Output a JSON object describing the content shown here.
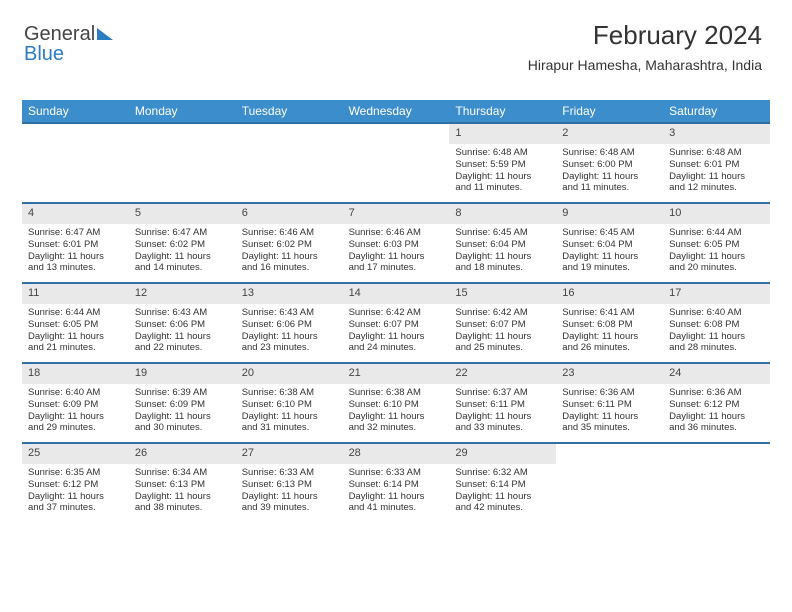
{
  "logo": {
    "text1": "General",
    "text2": "Blue"
  },
  "title": "February 2024",
  "subtitle": "Hirapur Hamesha, Maharashtra, India",
  "colors": {
    "headerBar": "#3c8dcc",
    "weekBorder": "#2f6fa3",
    "dayNumBg": "#e9e9e9",
    "logoBlue": "#2b7cc0",
    "text": "#333333",
    "bg": "#ffffff"
  },
  "dayNames": [
    "Sunday",
    "Monday",
    "Tuesday",
    "Wednesday",
    "Thursday",
    "Friday",
    "Saturday"
  ],
  "weeks": [
    [
      {
        "empty": true
      },
      {
        "empty": true
      },
      {
        "empty": true
      },
      {
        "empty": true
      },
      {
        "n": "1",
        "sr": "Sunrise: 6:48 AM",
        "ss": "Sunset: 5:59 PM",
        "d1": "Daylight: 11 hours",
        "d2": "and 11 minutes."
      },
      {
        "n": "2",
        "sr": "Sunrise: 6:48 AM",
        "ss": "Sunset: 6:00 PM",
        "d1": "Daylight: 11 hours",
        "d2": "and 11 minutes."
      },
      {
        "n": "3",
        "sr": "Sunrise: 6:48 AM",
        "ss": "Sunset: 6:01 PM",
        "d1": "Daylight: 11 hours",
        "d2": "and 12 minutes."
      }
    ],
    [
      {
        "n": "4",
        "sr": "Sunrise: 6:47 AM",
        "ss": "Sunset: 6:01 PM",
        "d1": "Daylight: 11 hours",
        "d2": "and 13 minutes."
      },
      {
        "n": "5",
        "sr": "Sunrise: 6:47 AM",
        "ss": "Sunset: 6:02 PM",
        "d1": "Daylight: 11 hours",
        "d2": "and 14 minutes."
      },
      {
        "n": "6",
        "sr": "Sunrise: 6:46 AM",
        "ss": "Sunset: 6:02 PM",
        "d1": "Daylight: 11 hours",
        "d2": "and 16 minutes."
      },
      {
        "n": "7",
        "sr": "Sunrise: 6:46 AM",
        "ss": "Sunset: 6:03 PM",
        "d1": "Daylight: 11 hours",
        "d2": "and 17 minutes."
      },
      {
        "n": "8",
        "sr": "Sunrise: 6:45 AM",
        "ss": "Sunset: 6:04 PM",
        "d1": "Daylight: 11 hours",
        "d2": "and 18 minutes."
      },
      {
        "n": "9",
        "sr": "Sunrise: 6:45 AM",
        "ss": "Sunset: 6:04 PM",
        "d1": "Daylight: 11 hours",
        "d2": "and 19 minutes."
      },
      {
        "n": "10",
        "sr": "Sunrise: 6:44 AM",
        "ss": "Sunset: 6:05 PM",
        "d1": "Daylight: 11 hours",
        "d2": "and 20 minutes."
      }
    ],
    [
      {
        "n": "11",
        "sr": "Sunrise: 6:44 AM",
        "ss": "Sunset: 6:05 PM",
        "d1": "Daylight: 11 hours",
        "d2": "and 21 minutes."
      },
      {
        "n": "12",
        "sr": "Sunrise: 6:43 AM",
        "ss": "Sunset: 6:06 PM",
        "d1": "Daylight: 11 hours",
        "d2": "and 22 minutes."
      },
      {
        "n": "13",
        "sr": "Sunrise: 6:43 AM",
        "ss": "Sunset: 6:06 PM",
        "d1": "Daylight: 11 hours",
        "d2": "and 23 minutes."
      },
      {
        "n": "14",
        "sr": "Sunrise: 6:42 AM",
        "ss": "Sunset: 6:07 PM",
        "d1": "Daylight: 11 hours",
        "d2": "and 24 minutes."
      },
      {
        "n": "15",
        "sr": "Sunrise: 6:42 AM",
        "ss": "Sunset: 6:07 PM",
        "d1": "Daylight: 11 hours",
        "d2": "and 25 minutes."
      },
      {
        "n": "16",
        "sr": "Sunrise: 6:41 AM",
        "ss": "Sunset: 6:08 PM",
        "d1": "Daylight: 11 hours",
        "d2": "and 26 minutes."
      },
      {
        "n": "17",
        "sr": "Sunrise: 6:40 AM",
        "ss": "Sunset: 6:08 PM",
        "d1": "Daylight: 11 hours",
        "d2": "and 28 minutes."
      }
    ],
    [
      {
        "n": "18",
        "sr": "Sunrise: 6:40 AM",
        "ss": "Sunset: 6:09 PM",
        "d1": "Daylight: 11 hours",
        "d2": "and 29 minutes."
      },
      {
        "n": "19",
        "sr": "Sunrise: 6:39 AM",
        "ss": "Sunset: 6:09 PM",
        "d1": "Daylight: 11 hours",
        "d2": "and 30 minutes."
      },
      {
        "n": "20",
        "sr": "Sunrise: 6:38 AM",
        "ss": "Sunset: 6:10 PM",
        "d1": "Daylight: 11 hours",
        "d2": "and 31 minutes."
      },
      {
        "n": "21",
        "sr": "Sunrise: 6:38 AM",
        "ss": "Sunset: 6:10 PM",
        "d1": "Daylight: 11 hours",
        "d2": "and 32 minutes."
      },
      {
        "n": "22",
        "sr": "Sunrise: 6:37 AM",
        "ss": "Sunset: 6:11 PM",
        "d1": "Daylight: 11 hours",
        "d2": "and 33 minutes."
      },
      {
        "n": "23",
        "sr": "Sunrise: 6:36 AM",
        "ss": "Sunset: 6:11 PM",
        "d1": "Daylight: 11 hours",
        "d2": "and 35 minutes."
      },
      {
        "n": "24",
        "sr": "Sunrise: 6:36 AM",
        "ss": "Sunset: 6:12 PM",
        "d1": "Daylight: 11 hours",
        "d2": "and 36 minutes."
      }
    ],
    [
      {
        "n": "25",
        "sr": "Sunrise: 6:35 AM",
        "ss": "Sunset: 6:12 PM",
        "d1": "Daylight: 11 hours",
        "d2": "and 37 minutes."
      },
      {
        "n": "26",
        "sr": "Sunrise: 6:34 AM",
        "ss": "Sunset: 6:13 PM",
        "d1": "Daylight: 11 hours",
        "d2": "and 38 minutes."
      },
      {
        "n": "27",
        "sr": "Sunrise: 6:33 AM",
        "ss": "Sunset: 6:13 PM",
        "d1": "Daylight: 11 hours",
        "d2": "and 39 minutes."
      },
      {
        "n": "28",
        "sr": "Sunrise: 6:33 AM",
        "ss": "Sunset: 6:14 PM",
        "d1": "Daylight: 11 hours",
        "d2": "and 41 minutes."
      },
      {
        "n": "29",
        "sr": "Sunrise: 6:32 AM",
        "ss": "Sunset: 6:14 PM",
        "d1": "Daylight: 11 hours",
        "d2": "and 42 minutes."
      },
      {
        "empty": true
      },
      {
        "empty": true
      }
    ]
  ]
}
